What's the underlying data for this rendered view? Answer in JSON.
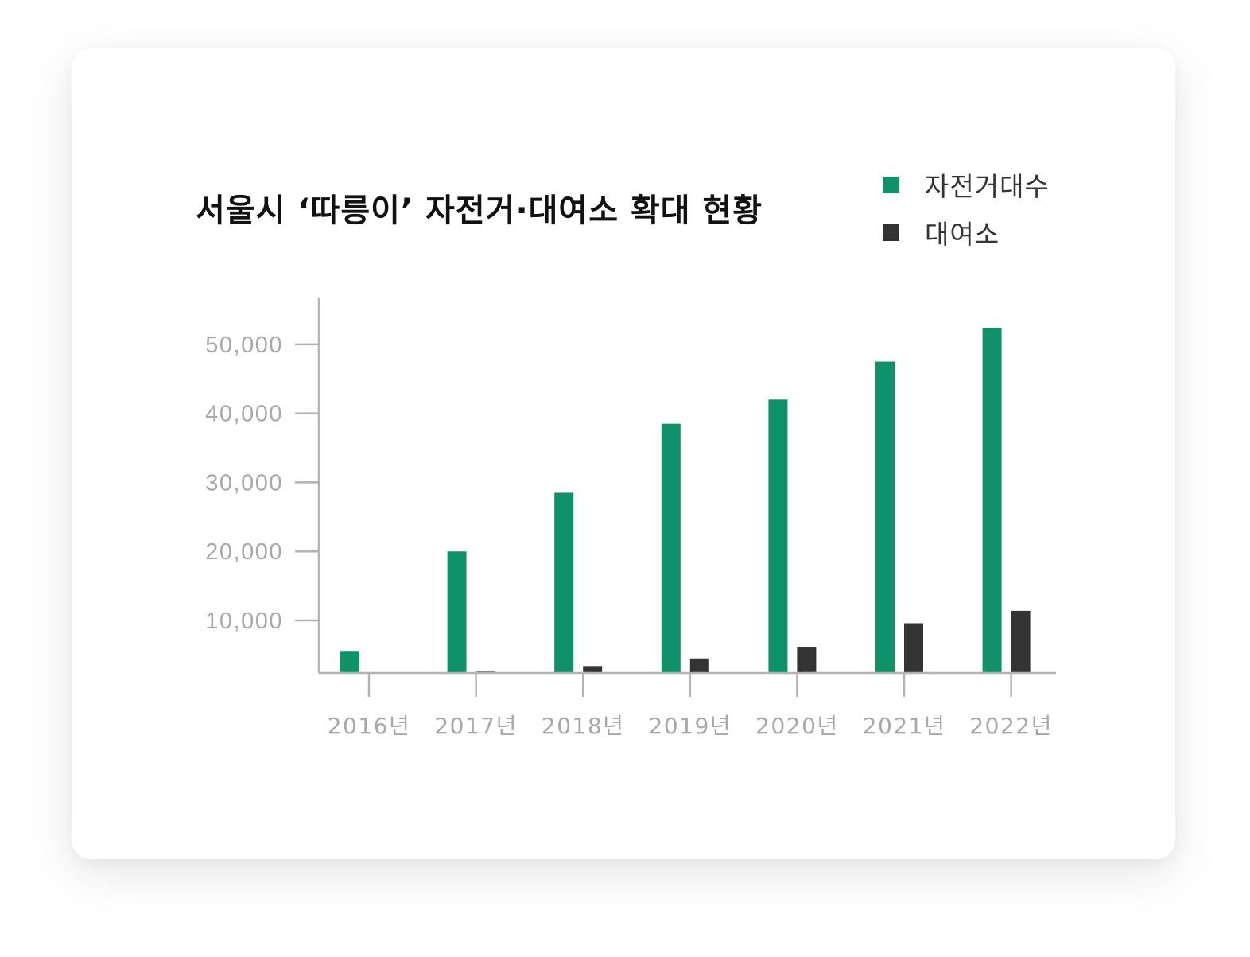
{
  "colors": {
    "bicycles": "#0f916a",
    "stations": "#333333",
    "axis": "#b3b3b3"
  },
  "chart_data": {
    "type": "bar",
    "title": "서울시 ‘따릉이’ 자전거·대여소 확대 현황",
    "categories": [
      "2016년",
      "2017년",
      "2018년",
      "2019년",
      "2020년",
      "2021년",
      "2022년"
    ],
    "series": [
      {
        "name": "자전거대수",
        "color": "#0f916a",
        "values": [
          5600,
          20000,
          28500,
          38500,
          42000,
          47500,
          52400
        ]
      },
      {
        "name": "대여소",
        "color": "#333333",
        "values": [
          1300,
          2600,
          3400,
          4500,
          6200,
          9600,
          11400
        ]
      }
    ],
    "yticks": [
      10000,
      20000,
      30000,
      40000,
      50000
    ],
    "ytick_labels": [
      "10,000",
      "20,000",
      "30,000",
      "40,000",
      "50,000"
    ],
    "ylim": [
      2400,
      56000
    ],
    "legend": "top-right",
    "grid": false
  }
}
